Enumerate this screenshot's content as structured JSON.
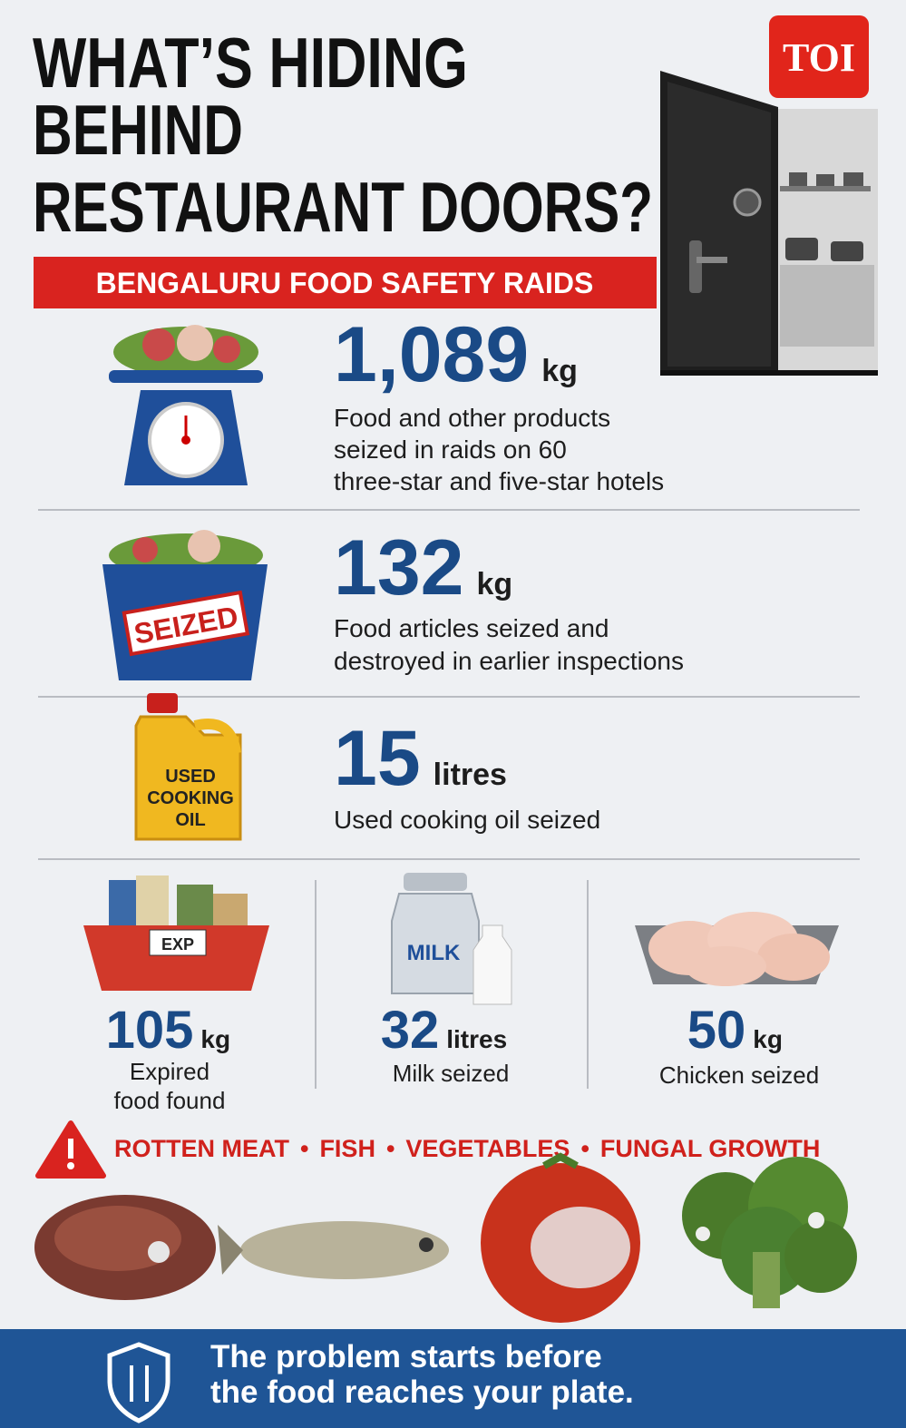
{
  "header": {
    "title_lines": [
      "WHAT’S HIDING",
      "BEHIND",
      "RESTAURANT DOORS?"
    ],
    "subtitle": "BENGALURU FOOD SAFETY RAIDS",
    "logo": "TOI"
  },
  "stats": [
    {
      "number": "1,089",
      "unit": "kg",
      "description_lines": [
        "Food and other products",
        "seized in raids on 60",
        "three-star and five-star hotels"
      ]
    },
    {
      "number": "132",
      "unit": "kg",
      "description_lines": [
        "Food articles seized and",
        "destroyed in earlier inspections"
      ],
      "icon_text": "SEIZED"
    },
    {
      "number": "15",
      "unit": "litres",
      "description_lines": [
        "Used cooking oil seized"
      ],
      "icon_text": [
        "USED",
        "COOKING",
        "OIL"
      ]
    }
  ],
  "secondary_stats": [
    {
      "number": "105",
      "unit": "kg",
      "label_lines": [
        "Expired",
        "food found"
      ],
      "icon_text": "EXP"
    },
    {
      "number": "32",
      "unit": "litres",
      "label_lines": [
        "Milk seized"
      ],
      "icon_text": "MILK"
    },
    {
      "number": "50",
      "unit": "kg",
      "label_lines": [
        "Chicken seized"
      ]
    }
  ],
  "warning": {
    "items": [
      "ROTTEN MEAT",
      "FISH",
      "VEGETABLES",
      "FUNGAL GROWTH"
    ]
  },
  "footer": {
    "lines": [
      "The problem starts before",
      "the food reaches your plate."
    ]
  }
}
